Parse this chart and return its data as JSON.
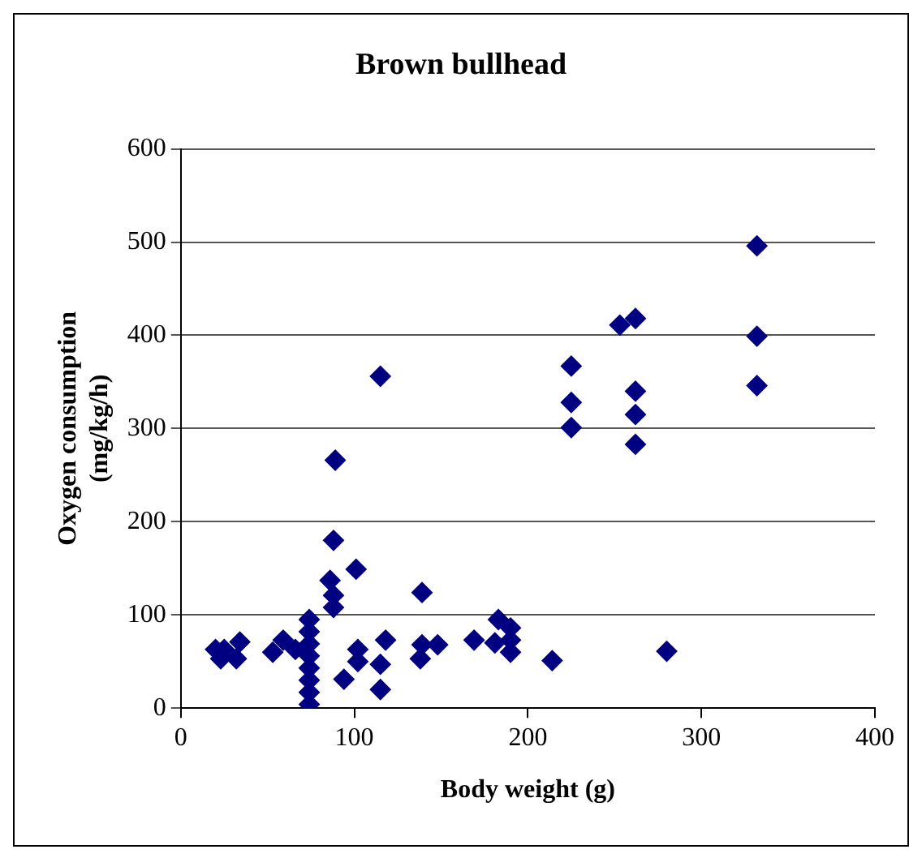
{
  "chart_data": {
    "type": "scatter",
    "title": "Brown bullhead",
    "xlabel": "Body weight (g)",
    "ylabel": "Oxygen consumption (mg/kg/h)",
    "xlim": [
      0,
      400
    ],
    "xticks": [
      0,
      100,
      200,
      300,
      400
    ],
    "ylim": [
      0,
      600
    ],
    "yticks": [
      0,
      100,
      200,
      300,
      400,
      500,
      600
    ],
    "grid": "y",
    "legend": false,
    "marker": "diamond",
    "series": [
      {
        "color": "#000080",
        "x": [
          332,
          332,
          332,
          253,
          262,
          225,
          225,
          225,
          262,
          262,
          262,
          115,
          89,
          88,
          101,
          86,
          88,
          88,
          139,
          280,
          214,
          183,
          190,
          169,
          181,
          190,
          190,
          139,
          138,
          148,
          118,
          115,
          115,
          102,
          102,
          94,
          74,
          74,
          74,
          74,
          74,
          74,
          74,
          74,
          53,
          59,
          66,
          34,
          32,
          20,
          25,
          23
        ],
        "values": [
          496,
          399,
          346,
          411,
          418,
          367,
          328,
          301,
          340,
          315,
          283,
          356,
          266,
          180,
          149,
          137,
          121,
          108,
          124,
          61,
          51,
          95,
          86,
          73,
          70,
          60,
          73,
          68,
          53,
          68,
          73,
          47,
          20,
          63,
          50,
          31,
          95,
          82,
          69,
          56,
          43,
          30,
          17,
          4,
          60,
          73,
          63,
          71,
          53,
          63,
          63,
          53
        ]
      }
    ]
  }
}
